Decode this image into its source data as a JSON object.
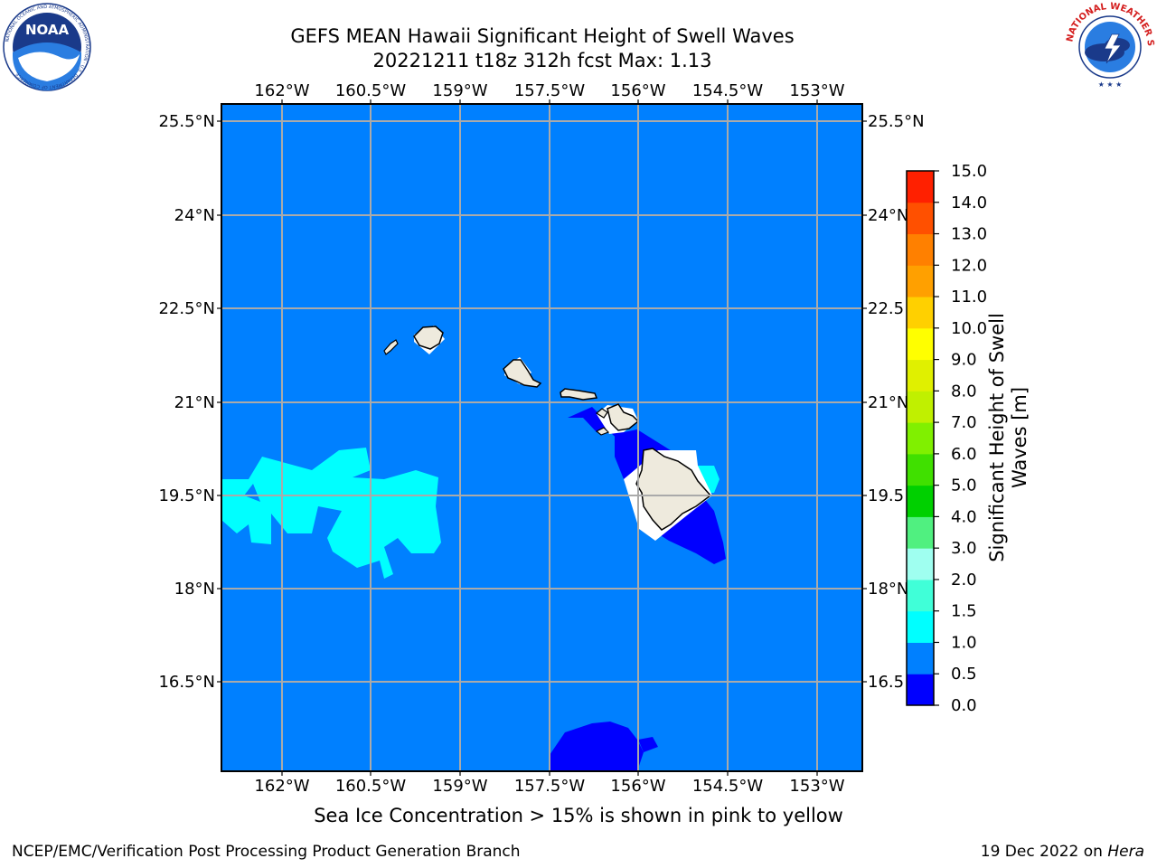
{
  "header": {
    "title_line1": "GEFS MEAN Hawaii Significant Height of Swell Waves",
    "title_line2": "20221211 t18z 312h fcst   Max: 1.13"
  },
  "logos": {
    "left": {
      "icon": "noaa-logo-icon",
      "text": "NOAA",
      "ring_text": "NATIONAL OCEANIC AND ATMOSPHERIC ADMINISTRATION · U.S. DEPARTMENT OF COMMERCE"
    },
    "right": {
      "icon": "nws-logo-icon",
      "ring_text": "NATIONAL WEATHER SERVICE"
    }
  },
  "map": {
    "lon_labels": [
      "162°W",
      "160.5°W",
      "159°W",
      "157.5°W",
      "156°W",
      "154.5°W",
      "153°W"
    ],
    "lat_labels": [
      "25.5°N",
      "24°N",
      "22.5°N",
      "21°N",
      "19.5°N",
      "18°N",
      "16.5°N"
    ],
    "lat_labels_right": [
      "25.5°N",
      "24°N",
      "22.5",
      "21°N",
      "19.5",
      "18°N",
      "16.5"
    ],
    "ocean_color": "#0080ff",
    "land_color": "#eeeadd"
  },
  "colorbar": {
    "label": "Significant Height of Swell\nWaves [m]",
    "label_line1": "Significant Height of Swell",
    "label_line2": "Waves [m]",
    "ticks": [
      "0.0",
      "0.5",
      "1.0",
      "1.5",
      "2.0",
      "3.0",
      "4.0",
      "5.0",
      "6.0",
      "7.0",
      "8.0",
      "9.0",
      "10.0",
      "11.0",
      "12.0",
      "13.0",
      "14.0",
      "15.0"
    ],
    "colors": [
      "#0000ff",
      "#0080ff",
      "#00ffff",
      "#40ffd8",
      "#9ffff0",
      "#50f080",
      "#00d000",
      "#40e000",
      "#80f000",
      "#c0f000",
      "#e0f000",
      "#ffff00",
      "#ffd000",
      "#ffa000",
      "#ff8000",
      "#ff5000",
      "#ff2000"
    ]
  },
  "note": "Sea Ice Concentration > 15% is shown in pink to yellow",
  "footer": {
    "left": "NCEP/EMC/Verification Post Processing Product Generation Branch",
    "date": "19 Dec 2022 on ",
    "machine": "Hera"
  }
}
